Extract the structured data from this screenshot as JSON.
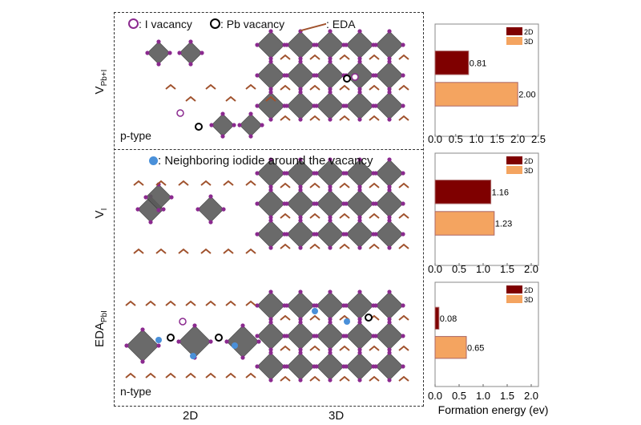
{
  "legend_top": {
    "i_vacancy": ": I vacancy",
    "pb_vacancy": ": Pb vacancy",
    "eda": ": EDA"
  },
  "legend_mid": {
    "neighbor": ": Neighboring iodide around the vacancy"
  },
  "rows": [
    {
      "label_main": "V",
      "label_sub": "Pb+I",
      "type": "p-type"
    },
    {
      "label_main": "V",
      "label_sub": "I",
      "type": ""
    },
    {
      "label_main": "EDA",
      "label_sub": "PbI",
      "type": "n-type"
    }
  ],
  "columns": {
    "c2d": "2D",
    "c3d": "3D"
  },
  "colors": {
    "2D": "#7f0000",
    "3D": "#f4a460",
    "octahedron": "#5a5a5a",
    "iodide": "#8b2a8f",
    "neighbor": "#4a90d9"
  },
  "chart_data": [
    {
      "type": "bar",
      "orientation": "horizontal",
      "title": "V_Pb+I",
      "categories": [
        "2D",
        "3D"
      ],
      "values": [
        0.81,
        2.0
      ],
      "value_labels": [
        "0.81",
        "2.00"
      ],
      "xlim": [
        0,
        2.5
      ],
      "xticks": [
        "0.0",
        "0.5",
        "1.0",
        "1.5",
        "2.0",
        "2.5"
      ],
      "legend": [
        "2D",
        "3D"
      ],
      "legend_position": "top-right"
    },
    {
      "type": "bar",
      "orientation": "horizontal",
      "title": "V_I",
      "categories": [
        "2D",
        "3D"
      ],
      "values": [
        1.16,
        1.23
      ],
      "value_labels": [
        "1.16",
        "1.23"
      ],
      "xlim": [
        0,
        2.15
      ],
      "xticks": [
        "0.0",
        "0.5",
        "1.0",
        "1.5",
        "2.0"
      ],
      "legend": [
        "2D",
        "3D"
      ],
      "legend_position": "top-right"
    },
    {
      "type": "bar",
      "orientation": "horizontal",
      "title": "EDA_PbI",
      "categories": [
        "2D",
        "3D"
      ],
      "values": [
        0.08,
        0.65
      ],
      "value_labels": [
        "0.08",
        "0.65"
      ],
      "xlim": [
        0,
        2.15
      ],
      "xticks": [
        "0.0",
        "0.5",
        "1.0",
        "1.5",
        "2.0"
      ],
      "legend": [
        "2D",
        "3D"
      ],
      "legend_position": "top-right",
      "xlabel": "Formation energy (ev)"
    }
  ]
}
